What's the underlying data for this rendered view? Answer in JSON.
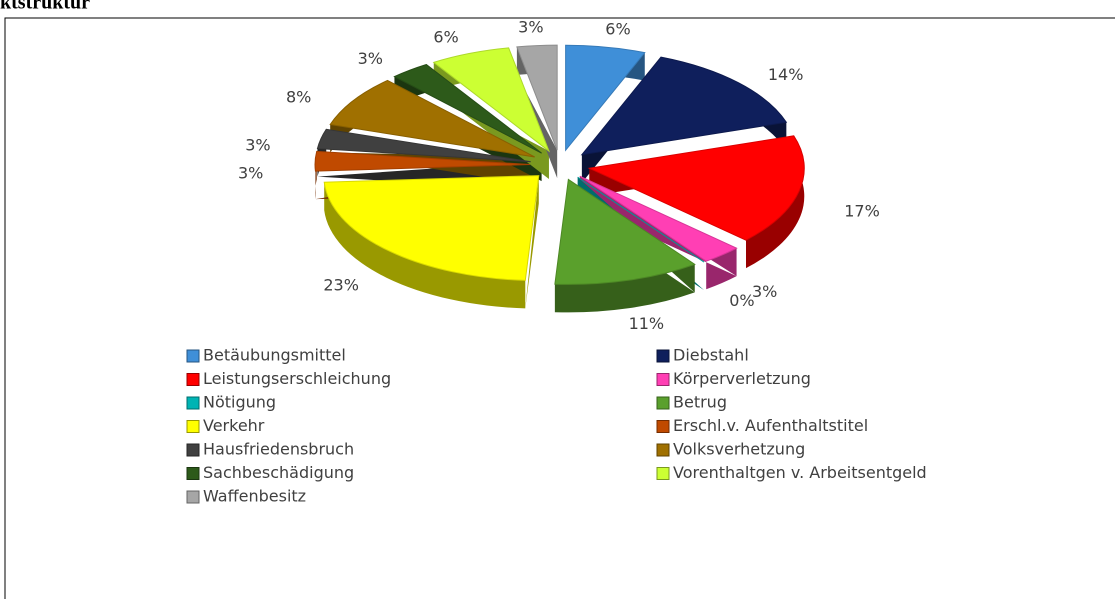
{
  "chart_data": {
    "type": "pie",
    "title": "ktstruktur",
    "categories": [
      "Betäubungsmittel",
      "Diebstahl",
      "Leistungserschleichung",
      "Körperverletzung",
      "Nötigung",
      "Betrug",
      "Verkehr",
      "Erschl.v. Aufenthaltstitel",
      "Hausfriedensbruch",
      "Volksverhetzung",
      "Sachbeschädigung",
      "Vorenthaltgen v. Arbeitsentgeld",
      "Waffenbesitz"
    ],
    "values": [
      6,
      14,
      17,
      3,
      0,
      11,
      23,
      3,
      3,
      8,
      3,
      6,
      3
    ],
    "value_labels": [
      "6%",
      "14%",
      "17%",
      "3%",
      "0%",
      "11%",
      "23%",
      "3%",
      "3%",
      "8%",
      "3%",
      "6%",
      "3%"
    ],
    "colors": [
      "#3f8fd8",
      "#0f1f5c",
      "#ff0000",
      "#ff3fb4",
      "#00b4b4",
      "#5aa02c",
      "#ffff00",
      "#c04a00",
      "#404040",
      "#a07000",
      "#2d5a1a",
      "#ccff33",
      "#a6a6a6"
    ],
    "legend": "bottom"
  }
}
